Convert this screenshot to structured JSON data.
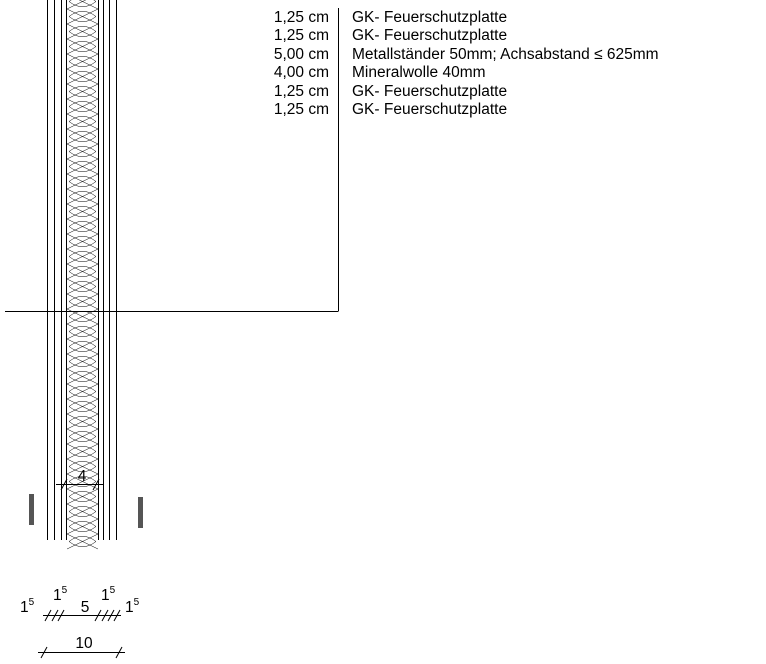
{
  "layers": [
    {
      "thickness": "1,25 cm",
      "description": "GK- Feuerschutzplatte"
    },
    {
      "thickness": "1,25 cm",
      "description": "GK- Feuerschutzplatte"
    },
    {
      "thickness": "5,00 cm",
      "description": "Metallständer 50mm; Achsabstand ≤ 625mm"
    },
    {
      "thickness": "4,00 cm",
      "description": "Mineralwolle 40mm"
    },
    {
      "thickness": "1,25 cm",
      "description": "GK- Feuerschutzplatte"
    },
    {
      "thickness": "1,25 cm",
      "description": "GK- Feuerschutzplatte"
    }
  ],
  "dimensions": {
    "insulation": "4",
    "top_row": [
      {
        "base": "1",
        "sup": "5"
      },
      {
        "base": "1",
        "sup": "5"
      },
      {
        "value": "5"
      },
      {
        "base": "1",
        "sup": "5"
      },
      {
        "base": "1",
        "sup": "5"
      }
    ],
    "total": "10"
  }
}
